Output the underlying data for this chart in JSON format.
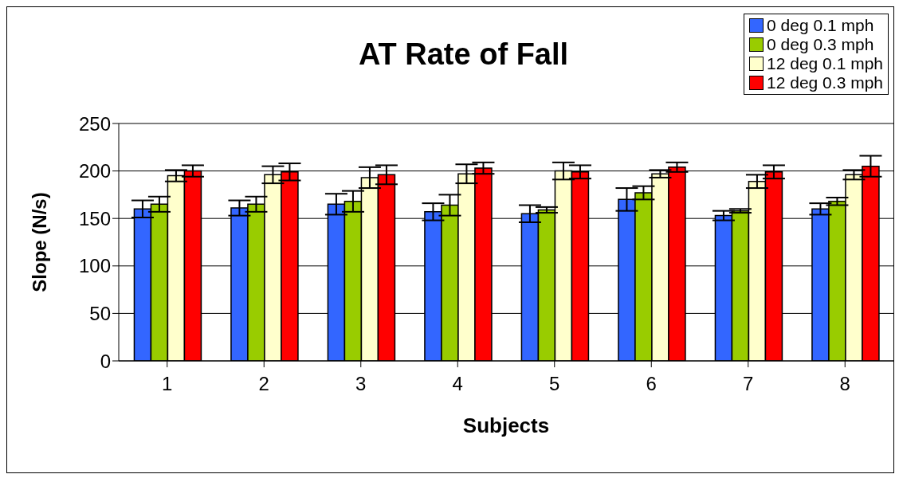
{
  "chart_data": {
    "type": "bar",
    "title": "AT Rate of Fall",
    "xlabel": "Subjects",
    "ylabel": "Slope (N/s)",
    "categories": [
      "1",
      "2",
      "3",
      "4",
      "5",
      "6",
      "7",
      "8"
    ],
    "series": [
      {
        "name": "0 deg 0.1 mph",
        "color": "#3366ff",
        "values": [
          160,
          161,
          165,
          157,
          155,
          170,
          153,
          160
        ],
        "errors": [
          9,
          8,
          11,
          9,
          9,
          12,
          5,
          6
        ]
      },
      {
        "name": "0 deg 0.3 mph",
        "color": "#99cc00",
        "values": [
          165,
          165,
          168,
          164,
          159,
          177,
          158,
          168
        ],
        "errors": [
          8,
          8,
          11,
          11,
          3,
          7,
          2,
          4
        ]
      },
      {
        "name": "12 deg 0.1 mph",
        "color": "#ffffcc",
        "values": [
          195,
          196,
          193,
          197,
          200,
          197,
          189,
          196
        ],
        "errors": [
          6,
          9,
          11,
          10,
          9,
          4,
          7,
          5
        ]
      },
      {
        "name": "12 deg 0.3 mph",
        "color": "#ff0000",
        "values": [
          200,
          199,
          196,
          203,
          199,
          204,
          199,
          205
        ],
        "errors": [
          6,
          9,
          10,
          6,
          7,
          5,
          7,
          11
        ]
      }
    ],
    "ylim": [
      0,
      250
    ],
    "yticks": [
      0,
      50,
      100,
      150,
      200,
      250
    ],
    "grid": "y",
    "legend": "top right"
  }
}
